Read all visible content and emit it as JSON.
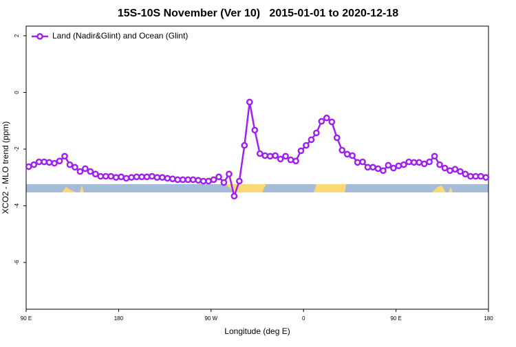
{
  "chart_data": {
    "type": "line",
    "title": "15S-10S November (Ver 10)   2015-01-01 to 2020-12-18",
    "xlabel": "Longitude (deg E)",
    "ylabel": "XCO2 - MLO trend (ppm)",
    "xlim": [
      90,
      540
    ],
    "ylim": [
      -7.65,
      2.34
    ],
    "xticks": [
      {
        "value": 90,
        "label": "90 E"
      },
      180,
      {
        "value": 270,
        "label": "90 W"
      },
      {
        "value": 360,
        "label": "0"
      },
      {
        "value": 450,
        "label": "90 E"
      },
      {
        "value": 540,
        "label": "180"
      }
    ],
    "yticks": [
      2,
      0,
      -2,
      -4,
      -6
    ],
    "legend": "top-left",
    "x": [
      92.5,
      97.5,
      102.5,
      107.5,
      112.5,
      117.5,
      122.5,
      127.5,
      132.5,
      137.5,
      142.5,
      147.5,
      152.5,
      157.5,
      162.5,
      167.5,
      172.5,
      177.5,
      182.5,
      187.5,
      192.5,
      197.5,
      202.5,
      207.5,
      212.5,
      217.5,
      222.5,
      227.5,
      232.5,
      237.5,
      242.5,
      247.5,
      252.5,
      257.5,
      262.5,
      267.5,
      272.5,
      277.5,
      282.5,
      287.5,
      292.5,
      297.5,
      302.5,
      307.5,
      312.5,
      317.5,
      322.5,
      327.5,
      332.5,
      337.5,
      342.5,
      347.5,
      352.5,
      357.5,
      362.5,
      367.5,
      372.5,
      377.5,
      382.5,
      387.5,
      392.5,
      397.5,
      402.5,
      407.5,
      412.5,
      417.5,
      422.5,
      427.5,
      432.5,
      437.5,
      442.5,
      447.5,
      452.5,
      457.5,
      462.5,
      467.5,
      472.5,
      477.5,
      482.5,
      487.5,
      492.5,
      497.5,
      502.5,
      507.5,
      512.5,
      517.5,
      522.5,
      527.5,
      532.5,
      537.5
    ],
    "series": [
      {
        "name": "Land (Nadir&Glint) and Ocean (Glint)",
        "color": "#a020f0",
        "values": [
          -2.62,
          -2.55,
          -2.45,
          -2.45,
          -2.47,
          -2.5,
          -2.42,
          -2.25,
          -2.55,
          -2.64,
          -2.79,
          -2.69,
          -2.79,
          -2.88,
          -2.96,
          -2.96,
          -2.96,
          -3.0,
          -2.98,
          -3.03,
          -3.0,
          -2.98,
          -2.98,
          -2.98,
          -2.96,
          -3.0,
          -3.0,
          -3.03,
          -3.05,
          -3.08,
          -3.08,
          -3.08,
          -3.08,
          -3.1,
          -3.13,
          -3.13,
          -3.08,
          -2.98,
          -3.18,
          -2.88,
          -3.66,
          -3.13,
          -1.87,
          -0.34,
          -1.33,
          -2.16,
          -2.23,
          -2.25,
          -2.23,
          -2.35,
          -2.25,
          -2.38,
          -2.42,
          -2.06,
          -1.87,
          -1.67,
          -1.43,
          -1.02,
          -0.9,
          -1.04,
          -1.6,
          -2.04,
          -2.18,
          -2.23,
          -2.47,
          -2.45,
          -2.64,
          -2.64,
          -2.69,
          -2.76,
          -2.57,
          -2.67,
          -2.59,
          -2.55,
          -2.45,
          -2.47,
          -2.47,
          -2.52,
          -2.45,
          -2.25,
          -2.55,
          -2.67,
          -2.76,
          -2.71,
          -2.79,
          -2.88,
          -2.96,
          -2.96,
          -2.96,
          -3.0
        ]
      }
    ]
  }
}
